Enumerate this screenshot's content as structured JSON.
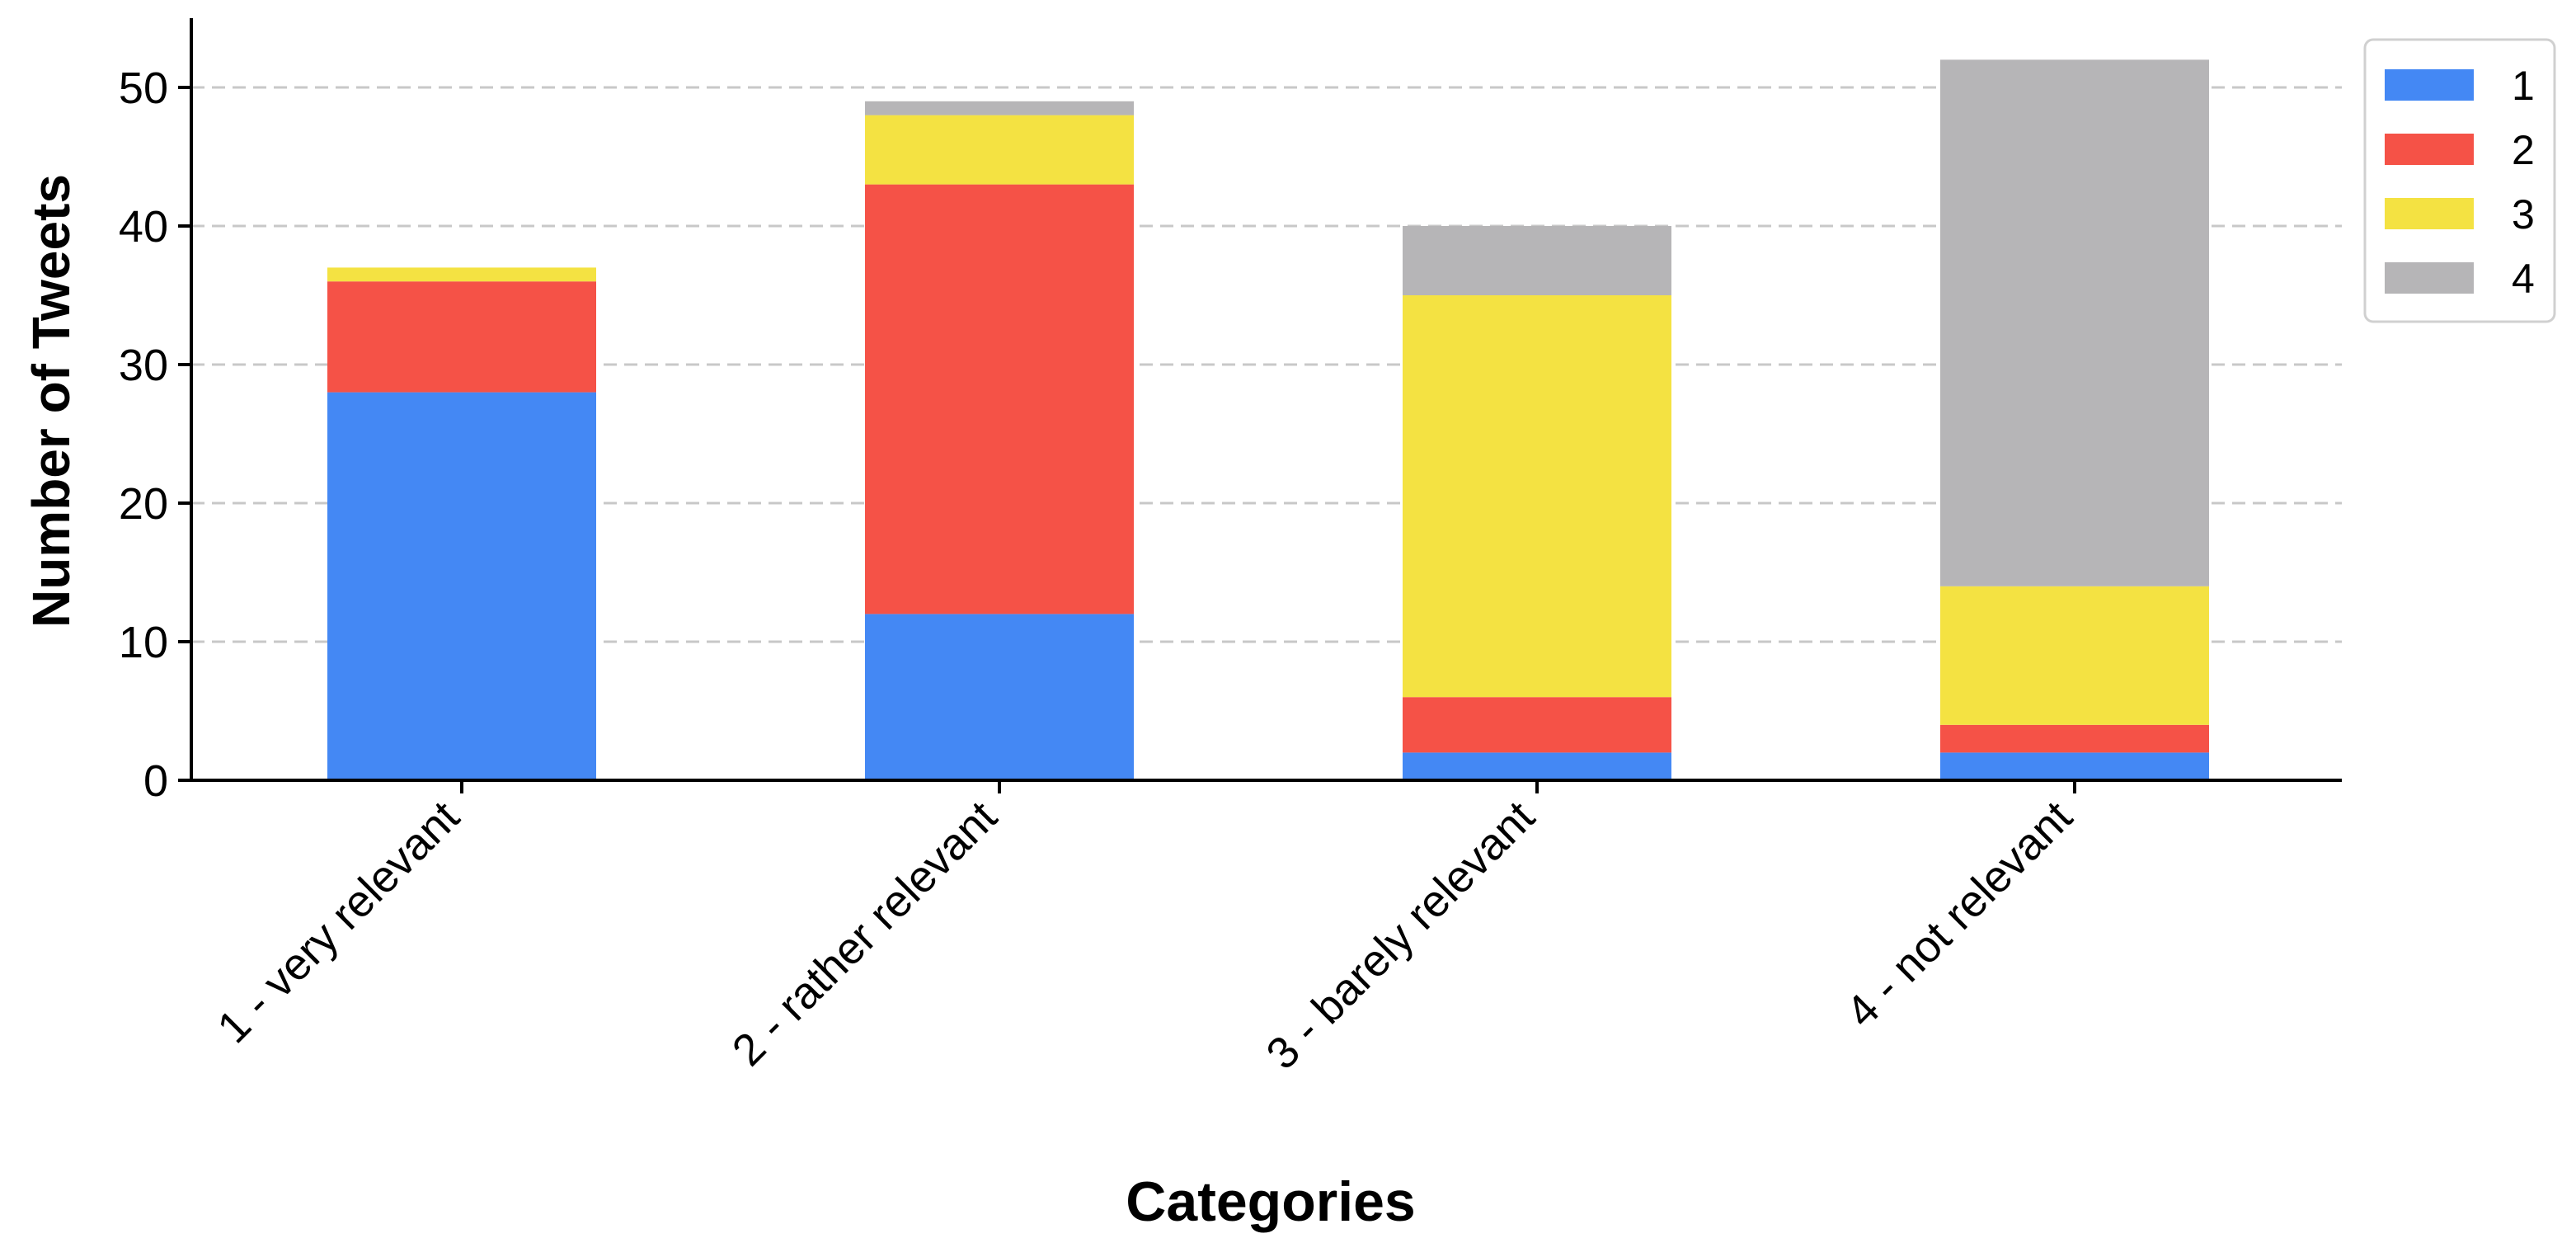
{
  "chart_data": {
    "type": "bar",
    "stacked": true,
    "xlabel": "Categories",
    "ylabel": "Number of Tweets",
    "categories": [
      "1 - very relevant",
      "2 - rather relevant",
      "3 - barely relevant",
      "4 - not relevant"
    ],
    "ylim": [
      0,
      55
    ],
    "yticks": [
      0,
      10,
      20,
      30,
      40,
      50
    ],
    "grid": true,
    "legend_position": "top-right",
    "series": [
      {
        "name": "1",
        "color": "#4488f4",
        "values": [
          28,
          12,
          2,
          2
        ]
      },
      {
        "name": "2",
        "color": "#f55247",
        "values": [
          8,
          31,
          4,
          2
        ]
      },
      {
        "name": "3",
        "color": "#f4e242",
        "values": [
          1,
          5,
          29,
          10
        ]
      },
      {
        "name": "4",
        "color": "#b6b5b7",
        "values": [
          0,
          1,
          5,
          38
        ]
      }
    ]
  }
}
